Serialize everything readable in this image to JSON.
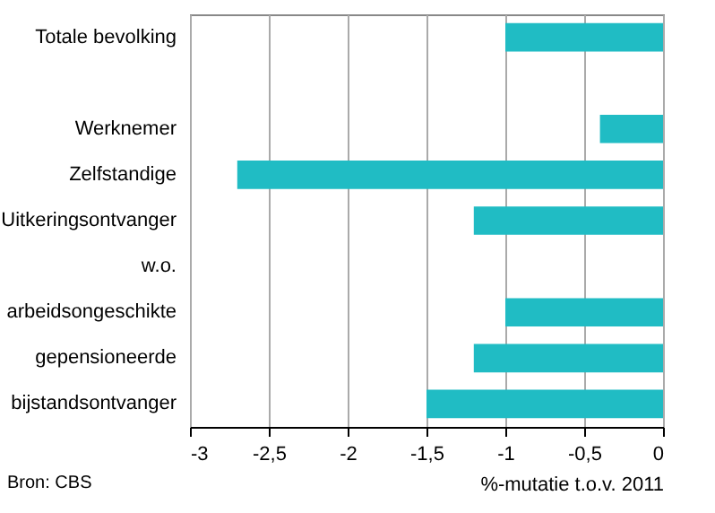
{
  "chart_data": {
    "type": "bar",
    "orientation": "horizontal",
    "categories": [
      "Totale bevolking",
      null,
      "Werknemer",
      "Zelfstandige",
      "Uitkeringsontvanger",
      "w.o.",
      "arbeidsongeschikte",
      "gepensioneerde",
      "bijstandsontvanger"
    ],
    "values": [
      -1.0,
      null,
      -0.4,
      -2.7,
      -1.2,
      null,
      -1.0,
      -1.2,
      -1.5
    ],
    "color": "#20bcc4",
    "xlim": [
      -3,
      0
    ],
    "xticks": [
      -3,
      {
        "value": -2.5,
        "label": "-2,5"
      },
      -2,
      {
        "value": -1.5,
        "label": "-1,5"
      },
      -1,
      {
        "value": -0.5,
        "label": "-0,5"
      },
      0
    ],
    "xlabel": "%-mutatie t.o.v. 2011",
    "grid": "x",
    "annotations": [
      "Bron: CBS"
    ]
  }
}
